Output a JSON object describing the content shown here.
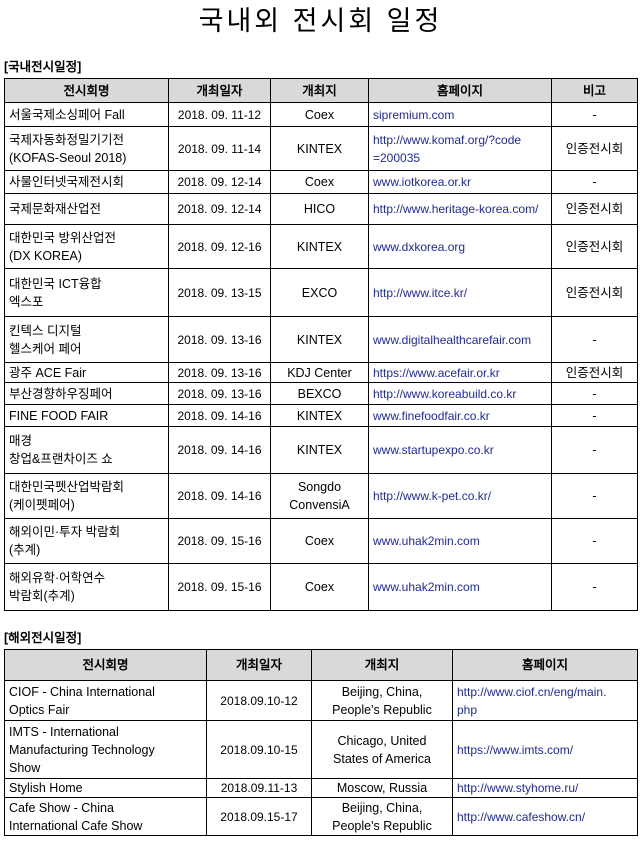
{
  "title": "국내외 전시회 일정",
  "domestic": {
    "section_label": "[국내전시일정]",
    "headers": [
      "전시회명",
      "개최일자",
      "개최지",
      "홈페이지",
      "비고"
    ],
    "rows": [
      {
        "name": "서울국제소싱페어 Fall",
        "date": "2018. 09. 11-12",
        "venue": "Coex",
        "url": "sipremium.com",
        "note": "-"
      },
      {
        "name": "국제자동화정밀기기전\n(KOFAS-Seoul 2018)",
        "date": "2018. 09. 11-14",
        "venue": "KINTEX",
        "url": "http://www.komaf.org/?code\n=200035",
        "note": "인증전시회"
      },
      {
        "name": "사물인터넷국제전시회",
        "date": "2018. 09. 12-14",
        "venue": "Coex",
        "url": "www.iotkorea.or.kr",
        "note": "-"
      },
      {
        "name": "국제문화재산업전",
        "date": "2018. 09. 12-14",
        "venue": "HICO",
        "url": "http://www.heritage-korea.com/",
        "note": "인증전시회"
      },
      {
        "name": "대한민국 방위산업전\n(DX KOREA)",
        "date": "2018. 09. 12-16",
        "venue": "KINTEX",
        "url": "www.dxkorea.org",
        "note": "인증전시회"
      },
      {
        "name": "대한민국 ICT융합\n엑스포",
        "date": "2018. 09. 13-15",
        "venue": "EXCO",
        "url": "http://www.itce.kr/",
        "note": "인증전시회"
      },
      {
        "name": "킨텍스 디지털\n헬스케어 페어",
        "date": "2018. 09. 13-16",
        "venue": "KINTEX",
        "url": "www.digitalhealthcarefair.com",
        "note": "-"
      },
      {
        "name": "광주 ACE Fair",
        "date": "2018. 09. 13-16",
        "venue": "KDJ Center",
        "url": "https://www.acefair.or.kr",
        "note": "인증전시회"
      },
      {
        "name": "부산경향하우징페어",
        "date": "2018. 09. 13-16",
        "venue": "BEXCO",
        "url": "http://www.koreabuild.co.kr",
        "note": "-"
      },
      {
        "name": "FINE FOOD FAIR",
        "date": "2018. 09. 14-16",
        "venue": "KINTEX",
        "url": "www.finefoodfair.co.kr",
        "note": "-"
      },
      {
        "name": "매경\n창업&프랜차이즈 쇼",
        "date": "2018. 09. 14-16",
        "venue": "KINTEX",
        "url": "www.startupexpo.co.kr",
        "note": "-"
      },
      {
        "name": "대한민국펫산업박람회\n(케이펫페어)",
        "date": "2018. 09. 14-16",
        "venue": "Songdo\nConvensiA",
        "url": "http://www.k-pet.co.kr/",
        "note": "-"
      },
      {
        "name": "해외이민·투자 박람회\n(추계)",
        "date": "2018. 09. 15-16",
        "venue": "Coex",
        "url": "www.uhak2min.com",
        "note": "-"
      },
      {
        "name": "해외유학·어학연수\n박람회(추계)",
        "date": "2018. 09. 15-16",
        "venue": "Coex",
        "url": "www.uhak2min.com",
        "note": "-"
      }
    ]
  },
  "overseas": {
    "section_label": "[해외전시일정]",
    "headers": [
      "전시회명",
      "개최일자",
      "개최지",
      "홈페이지"
    ],
    "rows": [
      {
        "name": "CIOF - China International\nOptics Fair",
        "date": "2018.09.10-12",
        "venue": "Beijing, China,\nPeople's Republic",
        "url": "http://www.ciof.cn/eng/main.\nphp"
      },
      {
        "name": "IMTS - International\nManufacturing Technology\nShow",
        "date": "2018.09.10-15",
        "venue": "Chicago, United\nStates of America",
        "url": "https://www.imts.com/"
      },
      {
        "name": "Stylish Home",
        "date": "2018.09.11-13",
        "venue": "Moscow, Russia",
        "url": "http://www.styhome.ru/"
      },
      {
        "name": "Cafe Show - China\nInternational Cafe Show",
        "date": "2018.09.15-17",
        "venue": "Beijing, China,\nPeople's Republic",
        "url": "http://www.cafeshow.cn/"
      }
    ]
  },
  "colors": {
    "header_bg": "#d9d9d9",
    "link": "#1f2a9c"
  }
}
